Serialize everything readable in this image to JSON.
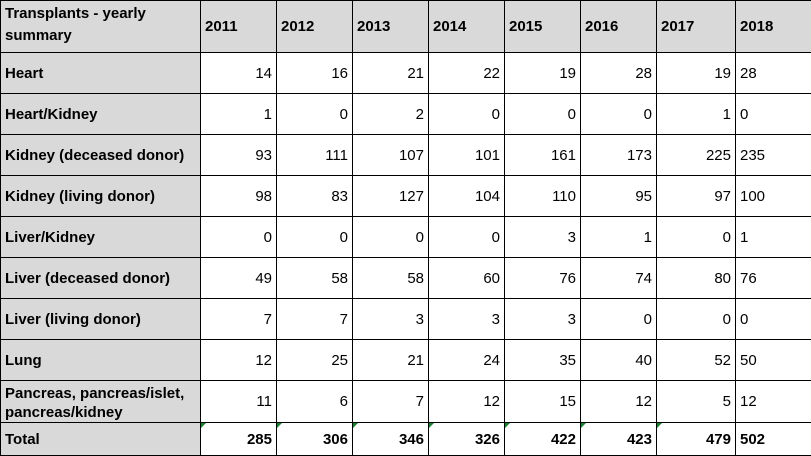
{
  "table": {
    "corner_label": "Transplants - yearly summary",
    "years": [
      "2011",
      "2012",
      "2013",
      "2014",
      "2015",
      "2016",
      "2017",
      "2018"
    ],
    "rows": [
      {
        "label": "Heart",
        "values": [
          "14",
          "16",
          "21",
          "22",
          "19",
          "28",
          "19",
          "28"
        ]
      },
      {
        "label": "Heart/Kidney",
        "values": [
          "1",
          "0",
          "2",
          "0",
          "0",
          "0",
          "1",
          "0"
        ]
      },
      {
        "label": "Kidney (deceased donor)",
        "values": [
          "93",
          "111",
          "107",
          "101",
          "161",
          "173",
          "225",
          "235"
        ]
      },
      {
        "label": "Kidney (living donor)",
        "values": [
          "98",
          "83",
          "127",
          "104",
          "110",
          "95",
          "97",
          "100"
        ]
      },
      {
        "label": "Liver/Kidney",
        "values": [
          "0",
          "0",
          "0",
          "0",
          "3",
          "1",
          "0",
          "1"
        ]
      },
      {
        "label": "Liver (deceased donor)",
        "values": [
          "49",
          "58",
          "58",
          "60",
          "76",
          "74",
          "80",
          "76"
        ]
      },
      {
        "label": "Liver (living donor)",
        "values": [
          "7",
          "7",
          "3",
          "3",
          "3",
          "0",
          "0",
          "0"
        ]
      },
      {
        "label": "Lung",
        "values": [
          "12",
          "25",
          "21",
          "24",
          "35",
          "40",
          "52",
          "50"
        ]
      },
      {
        "label": "Pancreas, pancreas/islet, pancreas/kidney",
        "values": [
          "11",
          "6",
          "7",
          "12",
          "15",
          "12",
          "5",
          "12"
        ]
      }
    ],
    "total": {
      "label": "Total",
      "values": [
        "285",
        "306",
        "346",
        "326",
        "422",
        "423",
        "479",
        "502"
      ]
    }
  }
}
